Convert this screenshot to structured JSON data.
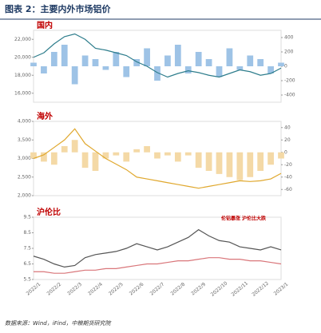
{
  "title": "图表 2：主要内外市场铝价",
  "source": "数据来源：Wind，iFind，中粮期货研究院",
  "chart_data": [
    {
      "type": "combo",
      "title": "国内",
      "ylim": [
        15000,
        23000
      ],
      "yticks": [
        {
          "value": 16000,
          "label": "16,000"
        },
        {
          "value": 18000,
          "label": "18,000"
        },
        {
          "value": 20000,
          "label": "20,000"
        },
        {
          "value": 22000,
          "label": "22,000"
        }
      ],
      "y2lim": [
        -500,
        500
      ],
      "y2ticks": [
        -400,
        -200,
        0,
        200,
        400
      ],
      "series": [
        {
          "color": "#9ec3e6",
          "axis": "y2",
          "values": [
            50,
            -100,
            200,
            300,
            -250,
            150,
            100,
            -50,
            200,
            -150,
            100,
            250,
            -200,
            150,
            300,
            -100,
            200,
            100,
            -150,
            250,
            -50,
            150,
            100,
            -100,
            50
          ]
        },
        {
          "color": "#2e7d8c",
          "values": [
            20000,
            20500,
            21500,
            22300,
            22600,
            22000,
            21000,
            20800,
            20500,
            20200,
            19500,
            19000,
            18300,
            17800,
            18200,
            18500,
            18300,
            18000,
            17800,
            18200,
            18600,
            18400,
            18000,
            18200,
            18800
          ]
        }
      ]
    },
    {
      "type": "combo",
      "title": "海外",
      "ylim": [
        2000,
        4000
      ],
      "yticks": [
        {
          "value": 2000,
          "label": "2,000"
        },
        {
          "value": 2500,
          "label": "2,500"
        },
        {
          "value": 3000,
          "label": "3,000"
        },
        {
          "value": 3500,
          "label": "3,500"
        },
        {
          "value": 4000,
          "label": "4,000"
        }
      ],
      "y2lim": [
        -70,
        50
      ],
      "y2ticks": [
        -60,
        -40,
        -20,
        0,
        20,
        40
      ],
      "series": [
        {
          "color": "#f4d9a6",
          "axis": "y2",
          "values": [
            -10,
            -15,
            -20,
            10,
            20,
            -25,
            -30,
            -10,
            -5,
            -15,
            5,
            10,
            -10,
            -5,
            -15,
            -5,
            -25,
            -30,
            -35,
            -40,
            -45,
            -40,
            -30,
            -20,
            -10
          ]
        },
        {
          "color": "#e0a82e",
          "values": [
            3000,
            3100,
            3300,
            3500,
            3800,
            3400,
            3200,
            3000,
            2850,
            2700,
            2500,
            2450,
            2400,
            2350,
            2300,
            2250,
            2200,
            2250,
            2300,
            2350,
            2400,
            2380,
            2400,
            2450,
            2600
          ]
        }
      ]
    },
    {
      "type": "combo",
      "title": "沪伦比",
      "annotation": "伦铝暴涨 沪伦比大跌",
      "ylim": [
        5.5,
        9.5
      ],
      "yticks": [
        5.5,
        6.5,
        7.5,
        8.5,
        9.5
      ],
      "categories": [
        "2022/1",
        null,
        "2022/2",
        null,
        "2022/3",
        null,
        "2022/4",
        null,
        "2022/5",
        null,
        "2022/6",
        null,
        "2022/7",
        null,
        "2022/8",
        null,
        "2022/9",
        null,
        "2022/10",
        null,
        "2022/11",
        null,
        "2022/12",
        null,
        "2023/1"
      ],
      "series": [
        {
          "color": "#555555",
          "values": [
            7.0,
            6.8,
            6.5,
            6.3,
            6.4,
            6.9,
            7.1,
            7.2,
            7.3,
            7.5,
            7.8,
            7.6,
            7.4,
            7.6,
            7.9,
            8.2,
            8.7,
            8.3,
            8.0,
            7.9,
            7.6,
            7.5,
            7.4,
            7.6,
            7.4
          ]
        },
        {
          "color": "#d9767a",
          "values": [
            6.0,
            6.0,
            5.9,
            5.9,
            6.0,
            6.1,
            6.1,
            6.2,
            6.2,
            6.3,
            6.4,
            6.5,
            6.5,
            6.6,
            6.7,
            6.7,
            6.8,
            6.9,
            6.9,
            6.8,
            6.8,
            6.7,
            6.7,
            6.6,
            6.5
          ]
        }
      ]
    }
  ]
}
